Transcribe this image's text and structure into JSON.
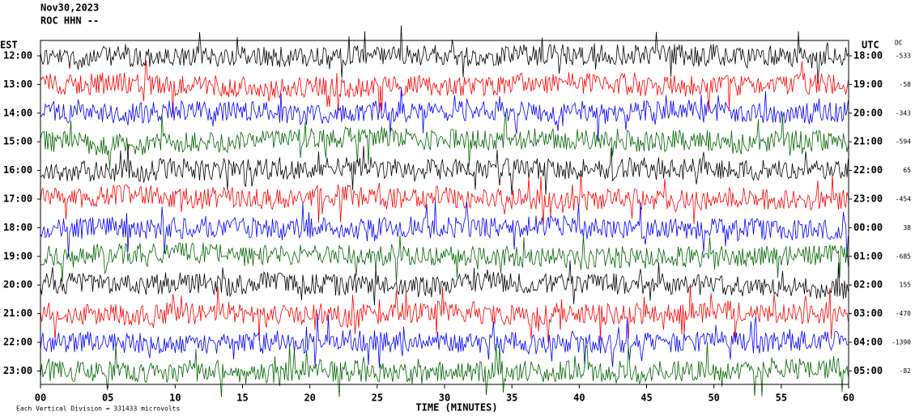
{
  "header": {
    "date": "Nov30,2023",
    "station": "ROC HHN --"
  },
  "left_label": "EST",
  "right_label": "UTC",
  "dc_label": "DC",
  "rows": [
    {
      "est": "12:00",
      "utc": "18:00",
      "dc": "-533",
      "color": "#000000"
    },
    {
      "est": "13:00",
      "utc": "19:00",
      "dc": "-58",
      "color": "#ff0000"
    },
    {
      "est": "14:00",
      "utc": "20:00",
      "dc": "-343",
      "color": "#0000ff"
    },
    {
      "est": "15:00",
      "utc": "21:00",
      "dc": "-594",
      "color": "#006400"
    },
    {
      "est": "16:00",
      "utc": "22:00",
      "dc": "65",
      "color": "#000000"
    },
    {
      "est": "17:00",
      "utc": "23:00",
      "dc": "-454",
      "color": "#ff0000"
    },
    {
      "est": "18:00",
      "utc": "00:00",
      "dc": "38",
      "color": "#0000ff"
    },
    {
      "est": "19:00",
      "utc": "01:00",
      "dc": "-685",
      "color": "#006400"
    },
    {
      "est": "20:00",
      "utc": "02:00",
      "dc": "155",
      "color": "#000000"
    },
    {
      "est": "21:00",
      "utc": "03:00",
      "dc": "-470",
      "color": "#ff0000"
    },
    {
      "est": "22:00",
      "utc": "04:00",
      "dc": "-1390",
      "color": "#0000ff"
    },
    {
      "est": "23:00",
      "utc": "05:00",
      "dc": "-82",
      "color": "#006400"
    }
  ],
  "x_axis": {
    "label": "TIME (MINUTES)",
    "ticks": [
      "00",
      "05",
      "10",
      "15",
      "20",
      "25",
      "30",
      "35",
      "40",
      "45",
      "50",
      "55",
      "60"
    ]
  },
  "footer": "Each Vertical Division = 331433 microvolts"
}
